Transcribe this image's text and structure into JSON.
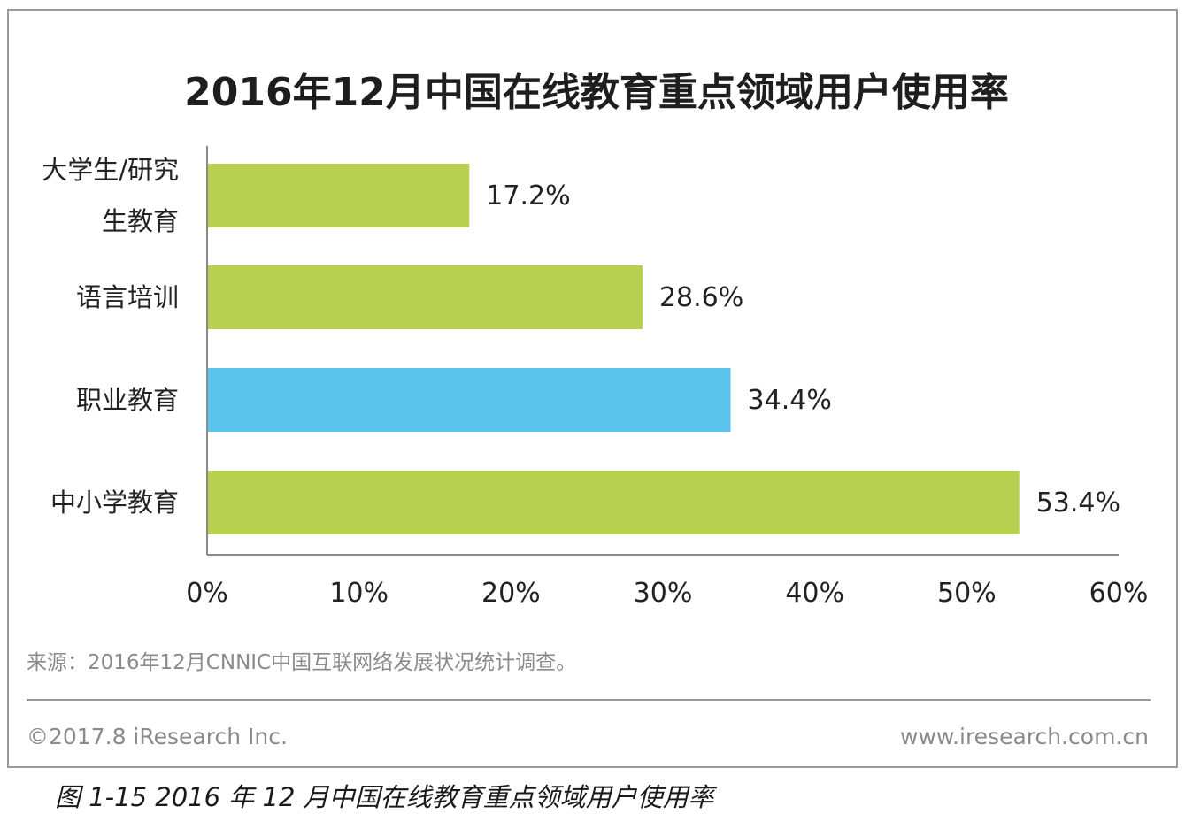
{
  "chart_data": {
    "type": "bar",
    "orientation": "horizontal",
    "title": "2016年12月中国在线教育重点领域用户使用率",
    "categories": [
      [
        "大学生/研究",
        "生教育"
      ],
      [
        "语言培训"
      ],
      [
        "职业教育"
      ],
      [
        "中小学教育"
      ]
    ],
    "values": [
      17.2,
      28.6,
      34.4,
      53.4
    ],
    "value_labels": [
      "17.2%",
      "28.6%",
      "34.4%",
      "53.4%"
    ],
    "bar_colors": [
      "#b8d04f",
      "#b8d04f",
      "#5bc4ec",
      "#b8d04f"
    ],
    "xlim": [
      0,
      60
    ],
    "x_ticks": [
      "0%",
      "10%",
      "20%",
      "30%",
      "40%",
      "50%",
      "60%"
    ],
    "grid": false
  },
  "source": "来源：2016年12月CNNIC中国互联网络发展状况统计调查。",
  "copyright": "©2017.8 iResearch Inc.",
  "website": "www.iresearch.com.cn",
  "caption": "图 1-15 2016 年 12 月中国在线教育重点领域用户使用率"
}
